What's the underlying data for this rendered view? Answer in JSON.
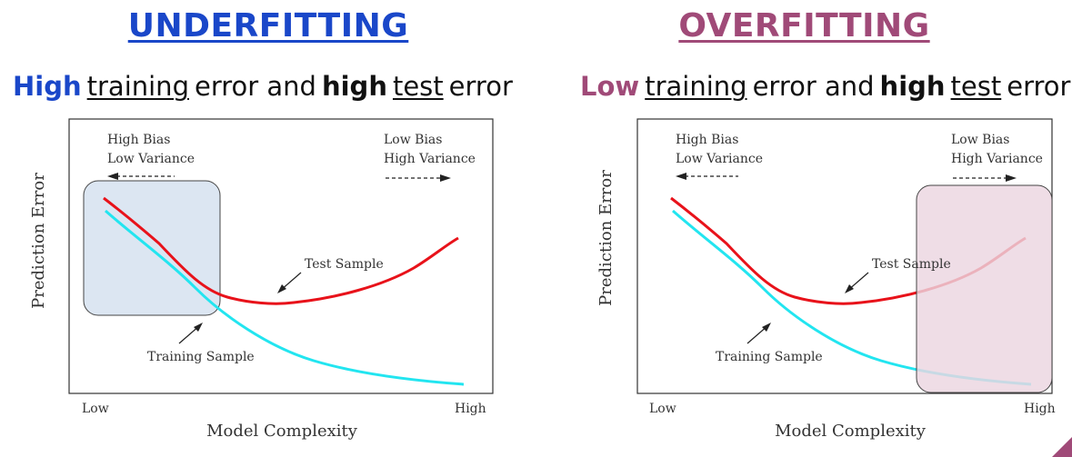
{
  "colors": {
    "underfit_title": "#1a47c9",
    "overfit_title": "#a04a78",
    "test_curve": "#e8121a",
    "train_curve": "#22e5f0",
    "underfit_box": "#dce6f2",
    "overfit_box": "#ecd5e0"
  },
  "underfitting": {
    "title": "UNDERFITTING",
    "subtitle": {
      "w1": "High",
      "w2": "training",
      "w3": "error and",
      "w4": "high",
      "w5": "test",
      "w6": "error"
    }
  },
  "overfitting": {
    "title": "OVERFITTING",
    "subtitle": {
      "w1": "Low",
      "w2": "training",
      "w3": "error and",
      "w4": "high",
      "w5": "test",
      "w6": "error"
    }
  },
  "diagram": {
    "y_axis_label": "Prediction Error",
    "x_axis_label": "Model Complexity",
    "x_low": "Low",
    "x_high": "High",
    "left_note_line1": "High Bias",
    "left_note_line2": "Low Variance",
    "right_note_line1": "Low Bias",
    "right_note_line2": "High Variance",
    "test_label": "Test Sample",
    "train_label": "Training Sample",
    "arrow_icons": [
      "dashed-arrow-left-icon",
      "dashed-arrow-right-icon",
      "pointer-arrow-icon"
    ]
  }
}
